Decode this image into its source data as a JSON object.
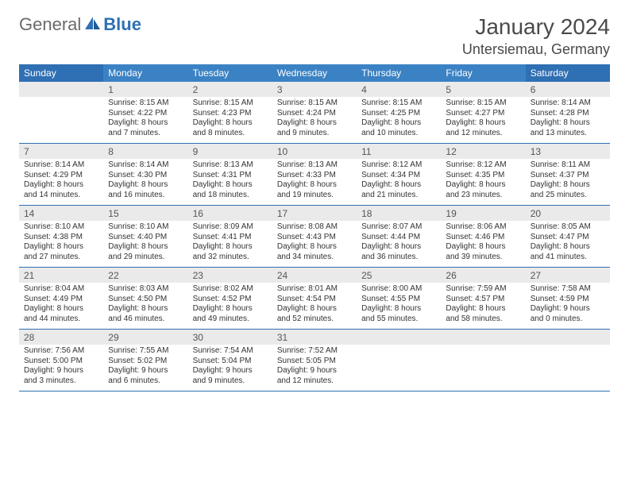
{
  "logo": {
    "text1": "General",
    "text2": "Blue"
  },
  "title": "January 2024",
  "location": "Untersiemau, Germany",
  "weekdays": [
    "Sunday",
    "Monday",
    "Tuesday",
    "Wednesday",
    "Thursday",
    "Friday",
    "Saturday"
  ],
  "colors": {
    "header_bg": "#3b82c4",
    "header_weekend_bg": "#2f6fb3",
    "header_text": "#ffffff",
    "daynum_bg": "#eaeaea",
    "border": "#2f6fb3",
    "logo_gray": "#6a6a6a",
    "logo_blue": "#2f6fb3"
  },
  "weeks": [
    [
      {
        "n": "",
        "sr": "",
        "ss": "",
        "dl": ""
      },
      {
        "n": "1",
        "sr": "Sunrise: 8:15 AM",
        "ss": "Sunset: 4:22 PM",
        "dl": "Daylight: 8 hours and 7 minutes."
      },
      {
        "n": "2",
        "sr": "Sunrise: 8:15 AM",
        "ss": "Sunset: 4:23 PM",
        "dl": "Daylight: 8 hours and 8 minutes."
      },
      {
        "n": "3",
        "sr": "Sunrise: 8:15 AM",
        "ss": "Sunset: 4:24 PM",
        "dl": "Daylight: 8 hours and 9 minutes."
      },
      {
        "n": "4",
        "sr": "Sunrise: 8:15 AM",
        "ss": "Sunset: 4:25 PM",
        "dl": "Daylight: 8 hours and 10 minutes."
      },
      {
        "n": "5",
        "sr": "Sunrise: 8:15 AM",
        "ss": "Sunset: 4:27 PM",
        "dl": "Daylight: 8 hours and 12 minutes."
      },
      {
        "n": "6",
        "sr": "Sunrise: 8:14 AM",
        "ss": "Sunset: 4:28 PM",
        "dl": "Daylight: 8 hours and 13 minutes."
      }
    ],
    [
      {
        "n": "7",
        "sr": "Sunrise: 8:14 AM",
        "ss": "Sunset: 4:29 PM",
        "dl": "Daylight: 8 hours and 14 minutes."
      },
      {
        "n": "8",
        "sr": "Sunrise: 8:14 AM",
        "ss": "Sunset: 4:30 PM",
        "dl": "Daylight: 8 hours and 16 minutes."
      },
      {
        "n": "9",
        "sr": "Sunrise: 8:13 AM",
        "ss": "Sunset: 4:31 PM",
        "dl": "Daylight: 8 hours and 18 minutes."
      },
      {
        "n": "10",
        "sr": "Sunrise: 8:13 AM",
        "ss": "Sunset: 4:33 PM",
        "dl": "Daylight: 8 hours and 19 minutes."
      },
      {
        "n": "11",
        "sr": "Sunrise: 8:12 AM",
        "ss": "Sunset: 4:34 PM",
        "dl": "Daylight: 8 hours and 21 minutes."
      },
      {
        "n": "12",
        "sr": "Sunrise: 8:12 AM",
        "ss": "Sunset: 4:35 PM",
        "dl": "Daylight: 8 hours and 23 minutes."
      },
      {
        "n": "13",
        "sr": "Sunrise: 8:11 AM",
        "ss": "Sunset: 4:37 PM",
        "dl": "Daylight: 8 hours and 25 minutes."
      }
    ],
    [
      {
        "n": "14",
        "sr": "Sunrise: 8:10 AM",
        "ss": "Sunset: 4:38 PM",
        "dl": "Daylight: 8 hours and 27 minutes."
      },
      {
        "n": "15",
        "sr": "Sunrise: 8:10 AM",
        "ss": "Sunset: 4:40 PM",
        "dl": "Daylight: 8 hours and 29 minutes."
      },
      {
        "n": "16",
        "sr": "Sunrise: 8:09 AM",
        "ss": "Sunset: 4:41 PM",
        "dl": "Daylight: 8 hours and 32 minutes."
      },
      {
        "n": "17",
        "sr": "Sunrise: 8:08 AM",
        "ss": "Sunset: 4:43 PM",
        "dl": "Daylight: 8 hours and 34 minutes."
      },
      {
        "n": "18",
        "sr": "Sunrise: 8:07 AM",
        "ss": "Sunset: 4:44 PM",
        "dl": "Daylight: 8 hours and 36 minutes."
      },
      {
        "n": "19",
        "sr": "Sunrise: 8:06 AM",
        "ss": "Sunset: 4:46 PM",
        "dl": "Daylight: 8 hours and 39 minutes."
      },
      {
        "n": "20",
        "sr": "Sunrise: 8:05 AM",
        "ss": "Sunset: 4:47 PM",
        "dl": "Daylight: 8 hours and 41 minutes."
      }
    ],
    [
      {
        "n": "21",
        "sr": "Sunrise: 8:04 AM",
        "ss": "Sunset: 4:49 PM",
        "dl": "Daylight: 8 hours and 44 minutes."
      },
      {
        "n": "22",
        "sr": "Sunrise: 8:03 AM",
        "ss": "Sunset: 4:50 PM",
        "dl": "Daylight: 8 hours and 46 minutes."
      },
      {
        "n": "23",
        "sr": "Sunrise: 8:02 AM",
        "ss": "Sunset: 4:52 PM",
        "dl": "Daylight: 8 hours and 49 minutes."
      },
      {
        "n": "24",
        "sr": "Sunrise: 8:01 AM",
        "ss": "Sunset: 4:54 PM",
        "dl": "Daylight: 8 hours and 52 minutes."
      },
      {
        "n": "25",
        "sr": "Sunrise: 8:00 AM",
        "ss": "Sunset: 4:55 PM",
        "dl": "Daylight: 8 hours and 55 minutes."
      },
      {
        "n": "26",
        "sr": "Sunrise: 7:59 AM",
        "ss": "Sunset: 4:57 PM",
        "dl": "Daylight: 8 hours and 58 minutes."
      },
      {
        "n": "27",
        "sr": "Sunrise: 7:58 AM",
        "ss": "Sunset: 4:59 PM",
        "dl": "Daylight: 9 hours and 0 minutes."
      }
    ],
    [
      {
        "n": "28",
        "sr": "Sunrise: 7:56 AM",
        "ss": "Sunset: 5:00 PM",
        "dl": "Daylight: 9 hours and 3 minutes."
      },
      {
        "n": "29",
        "sr": "Sunrise: 7:55 AM",
        "ss": "Sunset: 5:02 PM",
        "dl": "Daylight: 9 hours and 6 minutes."
      },
      {
        "n": "30",
        "sr": "Sunrise: 7:54 AM",
        "ss": "Sunset: 5:04 PM",
        "dl": "Daylight: 9 hours and 9 minutes."
      },
      {
        "n": "31",
        "sr": "Sunrise: 7:52 AM",
        "ss": "Sunset: 5:05 PM",
        "dl": "Daylight: 9 hours and 12 minutes."
      },
      {
        "n": "",
        "sr": "",
        "ss": "",
        "dl": ""
      },
      {
        "n": "",
        "sr": "",
        "ss": "",
        "dl": ""
      },
      {
        "n": "",
        "sr": "",
        "ss": "",
        "dl": ""
      }
    ]
  ]
}
